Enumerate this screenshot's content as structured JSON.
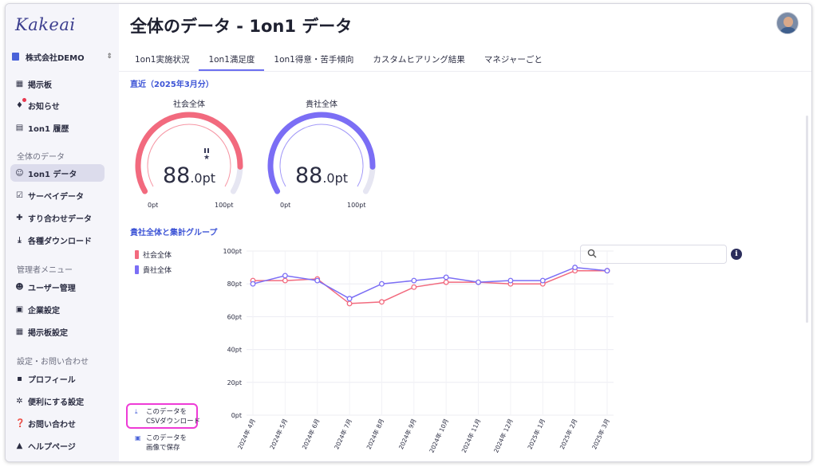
{
  "app": {
    "logo": "Kakeai"
  },
  "company": {
    "name": "株式会社DEMO",
    "switch_icon": "⇕"
  },
  "sidebar": {
    "top_items": [
      {
        "label": "掲示板",
        "icon": "board-icon"
      },
      {
        "label": "お知らせ",
        "icon": "bell-icon"
      },
      {
        "label": "1on1 履歴",
        "icon": "history-icon"
      }
    ],
    "section_data": "全体のデータ",
    "data_items": [
      {
        "label": "1on1 データ",
        "icon": "people-icon"
      },
      {
        "label": "サーベイデータ",
        "icon": "checkbox-icon"
      },
      {
        "label": "すり合わせデータ",
        "icon": "puzzle-icon"
      },
      {
        "label": "各種ダウンロード",
        "icon": "download-icon"
      }
    ],
    "section_admin": "管理者メニュー",
    "admin_items": [
      {
        "label": "ユーザー管理",
        "icon": "users-icon"
      },
      {
        "label": "企業設定",
        "icon": "building-icon"
      },
      {
        "label": "掲示板設定",
        "icon": "board-settings-icon"
      }
    ],
    "section_settings": "設定・お問い合わせ",
    "settings_items": [
      {
        "label": "プロフィール",
        "icon": "profile-icon"
      },
      {
        "label": "便利にする設定",
        "icon": "gear-icon"
      },
      {
        "label": "お問い合わせ",
        "icon": "question-icon"
      },
      {
        "label": "ヘルプページ",
        "icon": "graduation-icon"
      }
    ]
  },
  "header": {
    "title": "全体のデータ - 1on1 データ"
  },
  "tabs": [
    {
      "label": "1on1実施状況"
    },
    {
      "label": "1on1満足度"
    },
    {
      "label": "1on1得意・苦手傾向"
    },
    {
      "label": "カスタムヒアリング結果"
    },
    {
      "label": "マネジャーごと"
    }
  ],
  "recent": {
    "label": "直近（2025年3月分）",
    "gauges": [
      {
        "title": "社会全体",
        "value_int": "88",
        "value_dec": ".0pt",
        "min": "0pt",
        "max": "100pt",
        "value": 88,
        "color": "#f26a7e"
      },
      {
        "title": "貴社全体",
        "value_int": "88",
        "value_dec": ".0pt",
        "min": "0pt",
        "max": "100pt",
        "value": 88,
        "color": "#7b6ef5"
      }
    ]
  },
  "group": {
    "label": "貴社全体と集計グループ"
  },
  "search": {
    "placeholder": ""
  },
  "downloads": {
    "csv": "このデータを\nCSVダウンロード",
    "image": "このデータを\n画像で保存"
  },
  "chart_data": {
    "type": "line",
    "categories": [
      "2024年 4月",
      "2024年 5月",
      "2024年 6月",
      "2024年 7月",
      "2024年 8月",
      "2024年 9月",
      "2024年 10月",
      "2024年 11月",
      "2024年 12月",
      "2025年 1月",
      "2025年 2月",
      "2025年 3月"
    ],
    "yticks": [
      "0pt",
      "20pt",
      "40pt",
      "60pt",
      "80pt",
      "100pt"
    ],
    "ylim": [
      0,
      100
    ],
    "series": [
      {
        "name": "社会全体",
        "color": "#f26a7e",
        "values": [
          82,
          82,
          83,
          68,
          69,
          78,
          81,
          81,
          80,
          80,
          88,
          88
        ]
      },
      {
        "name": "貴社全体",
        "color": "#7b6ef5",
        "values": [
          80,
          85,
          82,
          71,
          80,
          82,
          84,
          81,
          82,
          82,
          90,
          88
        ]
      }
    ],
    "legend": "left",
    "grid": true
  }
}
